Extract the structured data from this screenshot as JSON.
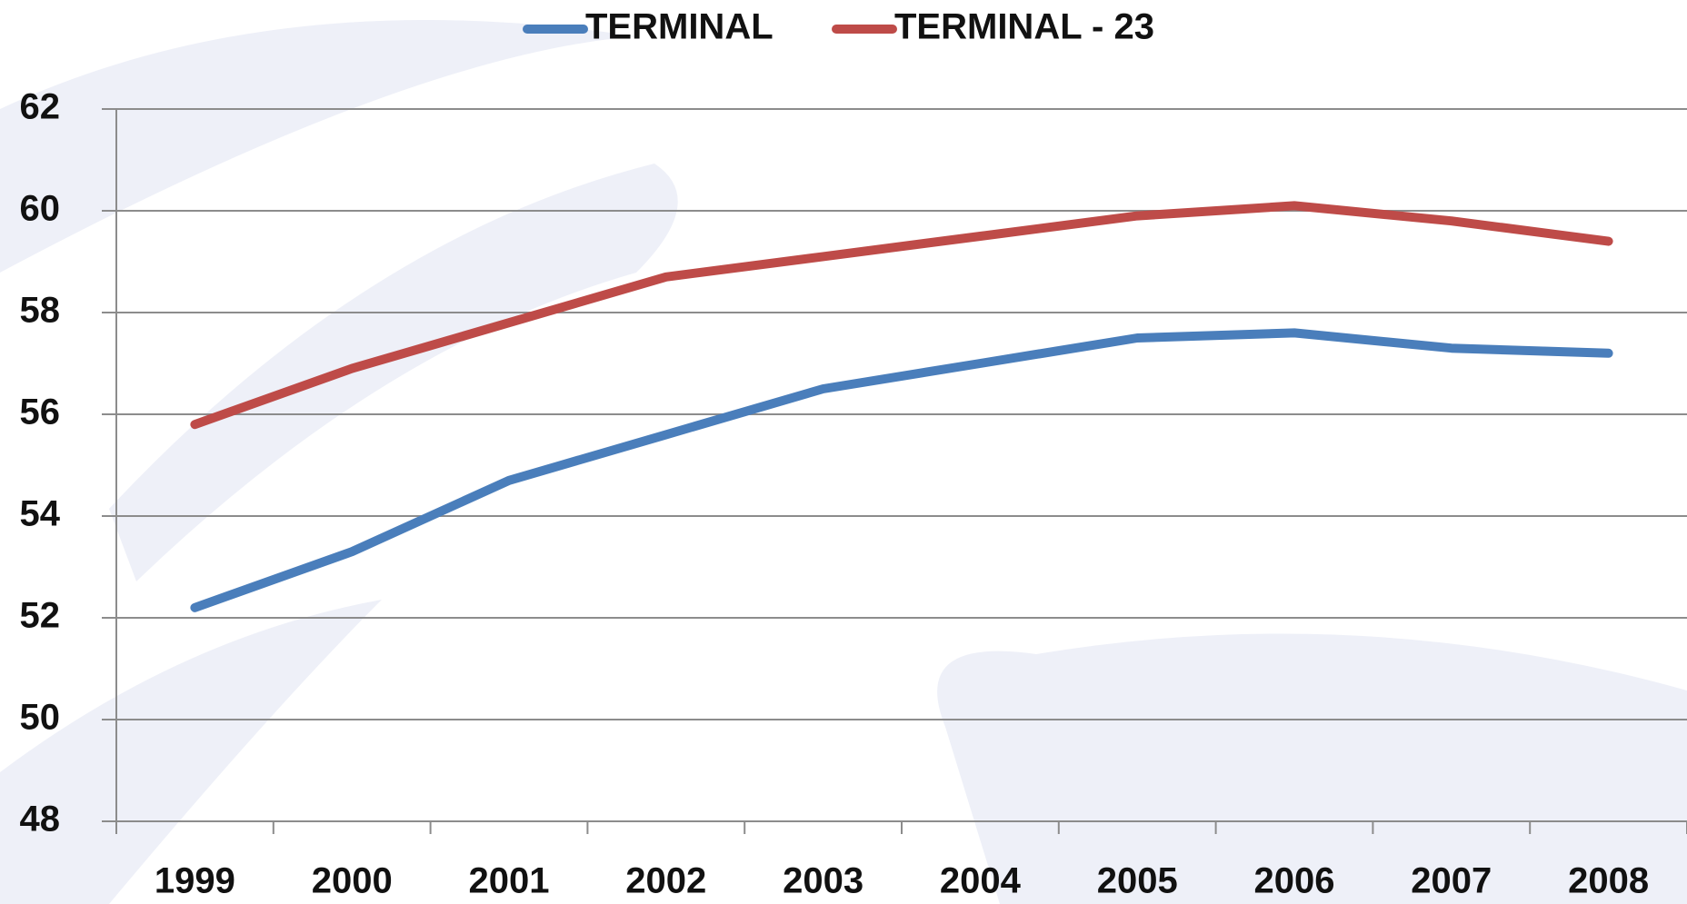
{
  "chart_data": {
    "type": "line",
    "categories": [
      "1999",
      "2000",
      "2001",
      "2002",
      "2003",
      "2004",
      "2005",
      "2006",
      "2007",
      "2008"
    ],
    "series": [
      {
        "name": "TERMINAL",
        "color": "#4a7ebb",
        "values": [
          52.2,
          53.3,
          54.7,
          55.6,
          56.5,
          57.0,
          57.5,
          57.6,
          57.3,
          57.2
        ]
      },
      {
        "name": "TERMINAL - 23",
        "color": "#be4b48",
        "values": [
          55.8,
          56.9,
          57.8,
          58.7,
          59.1,
          59.5,
          59.9,
          60.1,
          59.8,
          59.4
        ]
      }
    ],
    "ylim": [
      48,
      62
    ],
    "yticks": [
      48,
      50,
      52,
      54,
      56,
      58,
      60,
      62
    ],
    "grid": true,
    "legend": "top"
  }
}
